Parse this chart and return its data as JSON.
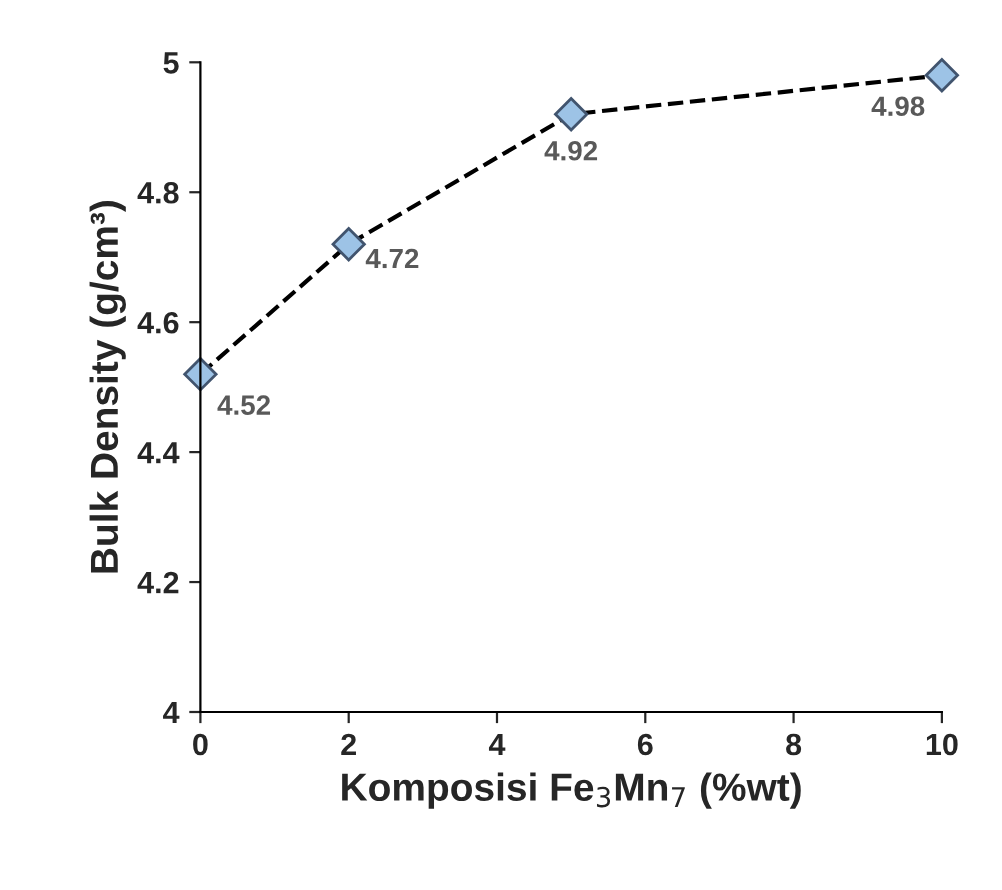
{
  "chart_data": {
    "type": "line",
    "xlabel": "Komposisi Fe$_{3}$Mn$_{7}$ (%wt)",
    "ylabel": "Bulk Density (g/cm³)",
    "x": [
      0,
      2,
      5,
      10
    ],
    "series": [
      {
        "color": "#9dc3e6",
        "values": [
          4.52,
          4.72,
          4.92,
          4.98
        ]
      }
    ],
    "xlim": [
      0,
      10
    ],
    "xticks": [
      0,
      2,
      4,
      6,
      8,
      10
    ],
    "ylim": [
      4,
      5
    ],
    "yticks": [
      4,
      4.2,
      4.4,
      4.6,
      4.8,
      5
    ],
    "grid": false,
    "marker": "diamond",
    "line_style": "dashed",
    "data_labels": true
  }
}
